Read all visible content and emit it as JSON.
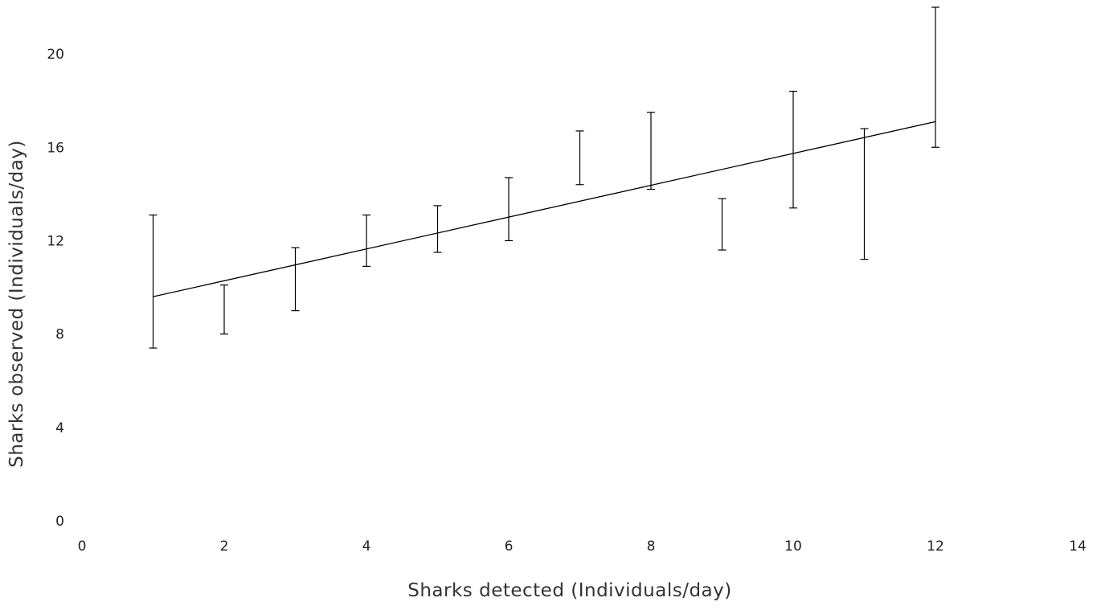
{
  "chart_data": {
    "type": "line",
    "title": "",
    "xlabel": "Sharks detected (Individuals/day)",
    "ylabel": "Sharks observed (Individuals/day)",
    "xlim": [
      0,
      14
    ],
    "ylim": [
      0,
      22
    ],
    "x_ticks": [
      "0",
      "2",
      "4",
      "6",
      "8",
      "10",
      "12",
      "14"
    ],
    "y_ticks": [
      "0",
      "4",
      "8",
      "12",
      "16",
      "20"
    ],
    "grid": false,
    "legend": "none",
    "error_bars": [
      {
        "x": 1,
        "low": 7.4,
        "high": 13.1
      },
      {
        "x": 2,
        "low": 8.0,
        "high": 10.1
      },
      {
        "x": 3,
        "low": 9.0,
        "high": 11.7
      },
      {
        "x": 4,
        "low": 10.9,
        "high": 13.1
      },
      {
        "x": 5,
        "low": 11.5,
        "high": 13.5
      },
      {
        "x": 6,
        "low": 12.0,
        "high": 14.7
      },
      {
        "x": 7,
        "low": 14.4,
        "high": 16.7
      },
      {
        "x": 8,
        "low": 14.2,
        "high": 17.5
      },
      {
        "x": 9,
        "low": 11.6,
        "high": 13.8
      },
      {
        "x": 10,
        "low": 13.4,
        "high": 18.4
      },
      {
        "x": 11,
        "low": 11.2,
        "high": 16.8
      },
      {
        "x": 12,
        "low": 16.0,
        "high": 22.0
      }
    ],
    "series": [
      {
        "x": [
          1,
          12
        ],
        "values": [
          9.6,
          17.1
        ]
      }
    ],
    "colors": {
      "line": "#000000",
      "error_bar": "#000000",
      "text": "#222222"
    }
  }
}
